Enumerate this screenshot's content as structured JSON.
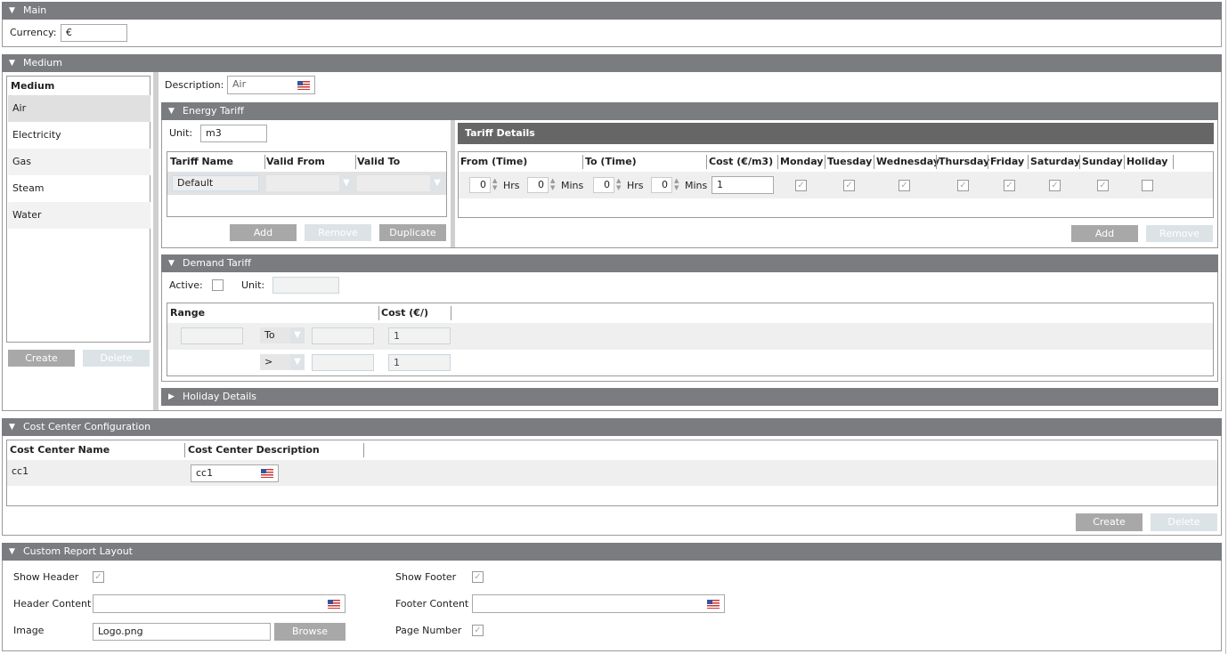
{
  "main": {
    "title": "Main",
    "currency_label": "Currency:",
    "currency_value": "€"
  },
  "medium": {
    "title": "Medium",
    "list_header": "Medium",
    "items": [
      "Air",
      "Electricity",
      "Gas",
      "Steam",
      "Water"
    ],
    "selected": "Air",
    "create": "Create",
    "delete": "Delete",
    "description_label": "Description:",
    "description_value": "Air"
  },
  "energy_tariff": {
    "title": "Energy Tariff",
    "unit_label": "Unit:",
    "unit_value": "m3",
    "columns": [
      "Tariff Name",
      "Valid From",
      "Valid To"
    ],
    "rows": [
      {
        "name": "Default",
        "valid_from": "",
        "valid_to": ""
      }
    ],
    "add": "Add",
    "remove": "Remove",
    "duplicate": "Duplicate"
  },
  "tariff_details": {
    "title": "Tariff Details",
    "columns": [
      "From (Time)",
      "To (Time)",
      "Cost (€/m3)",
      "Monday",
      "Tuesday",
      "Wednesday",
      "Thursday",
      "Friday",
      "Saturday",
      "Sunday",
      "Holiday"
    ],
    "row": {
      "from_hrs": "0",
      "from_mins": "0",
      "to_hrs": "0",
      "to_mins": "0",
      "hrs": "Hrs",
      "mins": "Mins",
      "cost": "1",
      "days": [
        true,
        true,
        true,
        true,
        true,
        true,
        true,
        false
      ]
    },
    "add": "Add",
    "remove": "Remove"
  },
  "demand_tariff": {
    "title": "Demand Tariff",
    "active_label": "Active:",
    "active": false,
    "unit_label": "Unit:",
    "unit_value": "",
    "columns": [
      "Range",
      "Cost (€/)"
    ],
    "rows": [
      {
        "op": "To",
        "cost": "1"
      },
      {
        "op": ">",
        "cost": "1"
      }
    ]
  },
  "holiday_details": {
    "title": "Holiday Details"
  },
  "cost_center": {
    "title": "Cost Center Configuration",
    "columns": [
      "Cost Center Name",
      "Cost Center Description"
    ],
    "rows": [
      {
        "name": "cc1",
        "description": "cc1"
      }
    ],
    "create": "Create",
    "delete": "Delete"
  },
  "report_layout": {
    "title": "Custom Report Layout",
    "show_header": "Show Header",
    "show_footer": "Show Footer",
    "header_content": "Header Content",
    "footer_content": "Footer Content",
    "image": "Image",
    "image_value": "Logo.png",
    "browse": "Browse",
    "page_number": "Page Number",
    "show_header_checked": true,
    "show_footer_checked": true,
    "page_number_checked": true
  },
  "colors": {
    "header": "#7a7c7f",
    "tariff_details_header": "#666666",
    "button": "#a8a8a8",
    "button_disabled": "#dce3e6"
  },
  "icons": {
    "expanded": "triangle-down",
    "collapsed": "triangle-right",
    "language": "us-flag"
  }
}
